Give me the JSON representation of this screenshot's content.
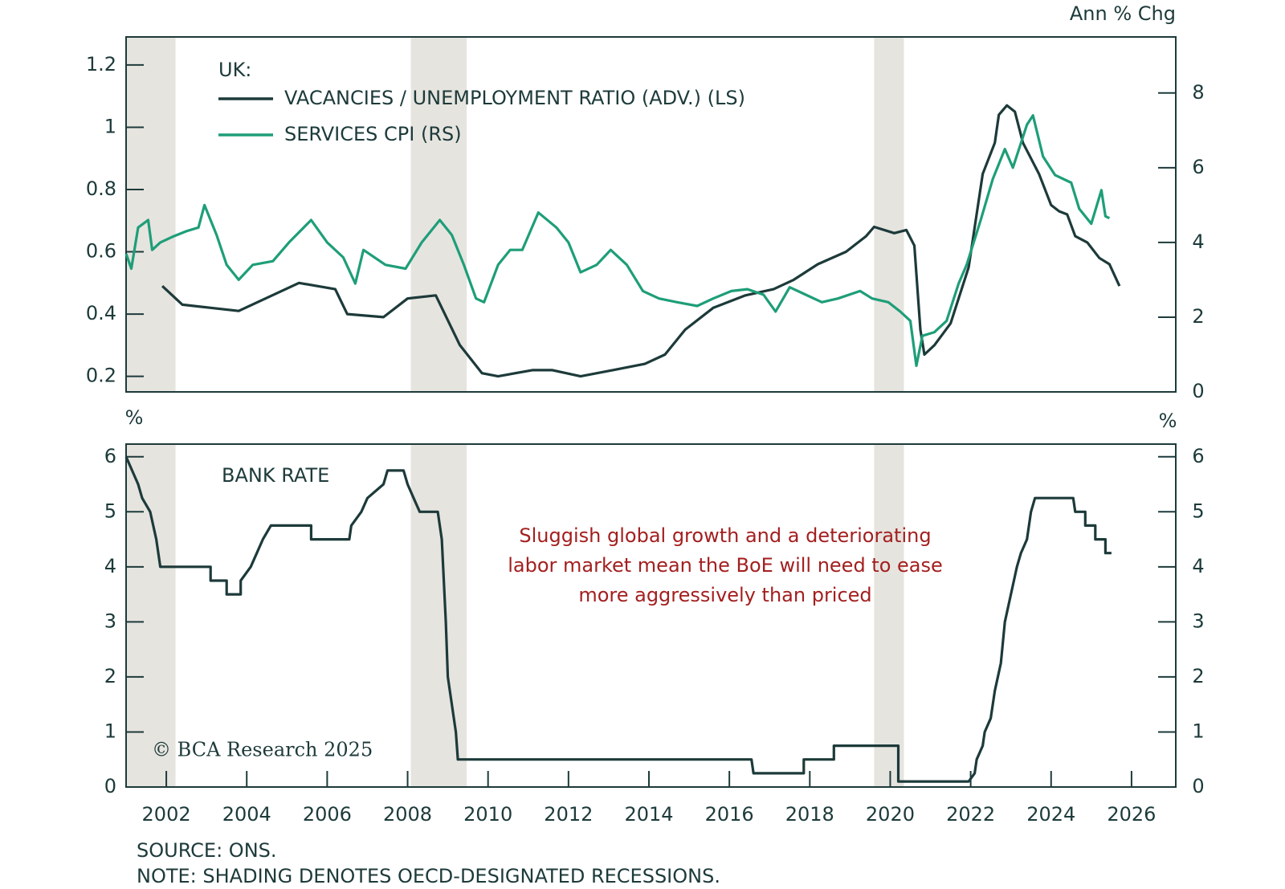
{
  "chart_data": [
    {
      "type": "line",
      "legend_title": "UK:",
      "legend": "upper left",
      "legend_style": "line",
      "y2_unit": "Ann % Chg",
      "xlim": [
        2001,
        2027.1
      ],
      "ylim": [
        0.15,
        1.29
      ],
      "yticks": [
        0.2,
        0.4,
        0.6,
        0.8,
        1.0,
        1.2
      ],
      "y2lim": [
        0,
        9.5
      ],
      "y2ticks": [
        0,
        2,
        4,
        6,
        8
      ],
      "recessions": [
        [
          2001,
          2002.23
        ],
        [
          2008.08,
          2009.47
        ],
        [
          2019.6,
          2020.34
        ]
      ],
      "recession_color": "#e6e4df",
      "series": [
        {
          "name": "VACANCIES / UNEMPLOYMENT RATIO (ADV.) (LS)",
          "color": "#1d3a3a",
          "axis": "y",
          "x": [
            2001.9,
            2002.4,
            2003.8,
            2005.3,
            2006.2,
            2006.5,
            2007.4,
            2008.0,
            2008.7,
            2009.3,
            2009.85,
            2010.25,
            2011.1,
            2011.6,
            2012.3,
            2013.1,
            2013.9,
            2014.4,
            2014.9,
            2015.6,
            2016.4,
            2017.1,
            2017.6,
            2018.2,
            2018.9,
            2019.4,
            2019.6,
            2020.1,
            2020.4,
            2020.6,
            2020.75,
            2020.85,
            2021.1,
            2021.5,
            2021.95,
            2022.3,
            2022.6,
            2022.7,
            2022.9,
            2023.1,
            2023.3,
            2023.5,
            2023.7,
            2024.0,
            2024.2,
            2024.4,
            2024.6,
            2024.9,
            2025.2,
            2025.45,
            2025.7
          ],
          "values": [
            0.49,
            0.43,
            0.41,
            0.5,
            0.48,
            0.4,
            0.39,
            0.45,
            0.46,
            0.3,
            0.21,
            0.2,
            0.22,
            0.22,
            0.2,
            0.22,
            0.24,
            0.27,
            0.35,
            0.42,
            0.46,
            0.48,
            0.51,
            0.56,
            0.6,
            0.65,
            0.68,
            0.66,
            0.67,
            0.62,
            0.35,
            0.27,
            0.3,
            0.37,
            0.55,
            0.85,
            0.95,
            1.04,
            1.07,
            1.05,
            0.95,
            0.9,
            0.85,
            0.75,
            0.73,
            0.72,
            0.65,
            0.63,
            0.58,
            0.56,
            0.49
          ]
        },
        {
          "name": "SERVICES CPI (RS)",
          "color": "#1e9e78",
          "axis": "y2",
          "x": [
            2001.0,
            2001.13,
            2001.3,
            2001.55,
            2001.65,
            2001.85,
            2002.15,
            2002.5,
            2002.8,
            2002.95,
            2003.25,
            2003.5,
            2003.8,
            2004.15,
            2004.65,
            2005.05,
            2005.6,
            2006.0,
            2006.4,
            2006.7,
            2006.9,
            2007.45,
            2007.95,
            2008.35,
            2008.8,
            2009.1,
            2009.4,
            2009.7,
            2009.9,
            2010.25,
            2010.55,
            2010.85,
            2011.25,
            2011.7,
            2012.0,
            2012.3,
            2012.7,
            2013.05,
            2013.45,
            2013.85,
            2014.25,
            2014.7,
            2015.2,
            2015.6,
            2016.05,
            2016.45,
            2016.85,
            2017.15,
            2017.5,
            2017.9,
            2018.3,
            2018.7,
            2019.25,
            2019.55,
            2019.95,
            2020.25,
            2020.5,
            2020.65,
            2020.8,
            2021.1,
            2021.4,
            2021.7,
            2021.9,
            2022.25,
            2022.55,
            2022.85,
            2023.05,
            2023.4,
            2023.55,
            2023.8,
            2024.1,
            2024.5,
            2024.7,
            2025.0,
            2025.25,
            2025.35,
            2025.45
          ],
          "values": [
            3.7,
            3.3,
            4.4,
            4.6,
            3.8,
            4.0,
            4.15,
            4.3,
            4.4,
            5.0,
            4.2,
            3.4,
            3.0,
            3.4,
            3.5,
            4.0,
            4.6,
            4.0,
            3.6,
            2.9,
            3.8,
            3.4,
            3.3,
            4.0,
            4.6,
            4.2,
            3.4,
            2.5,
            2.4,
            3.4,
            3.8,
            3.8,
            4.8,
            4.4,
            4.0,
            3.2,
            3.4,
            3.8,
            3.4,
            2.7,
            2.5,
            2.4,
            2.3,
            2.5,
            2.7,
            2.75,
            2.6,
            2.15,
            2.8,
            2.6,
            2.4,
            2.5,
            2.7,
            2.5,
            2.4,
            2.15,
            1.9,
            0.7,
            1.5,
            1.6,
            1.9,
            2.9,
            3.4,
            4.6,
            5.7,
            6.5,
            6.0,
            7.15,
            7.4,
            6.3,
            5.8,
            5.6,
            4.9,
            4.5,
            5.4,
            4.7,
            4.65
          ]
        }
      ]
    },
    {
      "type": "line",
      "legend": "upper left",
      "legend_style": "text",
      "y_unit": "%",
      "y2_unit": "%",
      "xlim": [
        2001,
        2027.1
      ],
      "ylim": [
        0,
        6.23
      ],
      "yticks": [
        0,
        1,
        2,
        3,
        4,
        5,
        6
      ],
      "y2lim": [
        0,
        6.23
      ],
      "y2ticks": [
        0,
        1,
        2,
        3,
        4,
        5,
        6
      ],
      "xticks": [
        2002,
        2004,
        2006,
        2008,
        2010,
        2012,
        2014,
        2016,
        2018,
        2020,
        2022,
        2024,
        2026
      ],
      "recessions": [
        [
          2001,
          2002.23
        ],
        [
          2008.08,
          2009.47
        ],
        [
          2019.6,
          2020.34
        ]
      ],
      "recession_color": "#e6e4df",
      "annotation": [
        "Sluggish global growth and a deteriorating",
        "labor market mean the BoE will need to ease",
        "more aggressively than priced"
      ],
      "annotation_color": "#a31f1f",
      "credit": "© BCA Research 2025",
      "series": [
        {
          "name": "BANK RATE",
          "color": "#1d3a3a",
          "axis": "y",
          "x": [
            2001.0,
            2001.15,
            2001.3,
            2001.4,
            2001.6,
            2001.75,
            2001.85,
            2003.1,
            2003.1,
            2003.5,
            2003.5,
            2003.85,
            2003.85,
            2004.1,
            2004.4,
            2004.6,
            2005.6,
            2005.6,
            2006.55,
            2006.6,
            2006.85,
            2007.0,
            2007.4,
            2007.5,
            2007.9,
            2008.0,
            2008.15,
            2008.3,
            2008.75,
            2008.85,
            2008.95,
            2009.0,
            2009.1,
            2009.2,
            2009.25,
            2016.55,
            2016.6,
            2017.85,
            2017.85,
            2018.6,
            2018.6,
            2020.2,
            2020.2,
            2021.95,
            2022.1,
            2022.15,
            2022.3,
            2022.35,
            2022.5,
            2022.6,
            2022.75,
            2022.85,
            2023.0,
            2023.15,
            2023.25,
            2023.4,
            2023.5,
            2023.6,
            2024.55,
            2024.6,
            2024.85,
            2024.85,
            2025.1,
            2025.1,
            2025.35,
            2025.35,
            2025.5
          ],
          "values": [
            6.0,
            5.75,
            5.5,
            5.25,
            5.0,
            4.5,
            4.0,
            4.0,
            3.75,
            3.75,
            3.5,
            3.5,
            3.75,
            4.0,
            4.5,
            4.75,
            4.75,
            4.5,
            4.5,
            4.75,
            5.0,
            5.25,
            5.5,
            5.75,
            5.75,
            5.5,
            5.25,
            5.0,
            5.0,
            4.5,
            3.0,
            2.0,
            1.5,
            1.0,
            0.5,
            0.5,
            0.25,
            0.25,
            0.5,
            0.5,
            0.75,
            0.75,
            0.1,
            0.1,
            0.25,
            0.5,
            0.75,
            1.0,
            1.25,
            1.75,
            2.25,
            3.0,
            3.5,
            4.0,
            4.25,
            4.5,
            5.0,
            5.25,
            5.25,
            5.0,
            5.0,
            4.75,
            4.75,
            4.5,
            4.5,
            4.25,
            4.25
          ]
        }
      ]
    }
  ],
  "source": "SOURCE: ONS.",
  "note": "NOTE: SHADING DENOTES OECD-DESIGNATED RECESSIONS."
}
